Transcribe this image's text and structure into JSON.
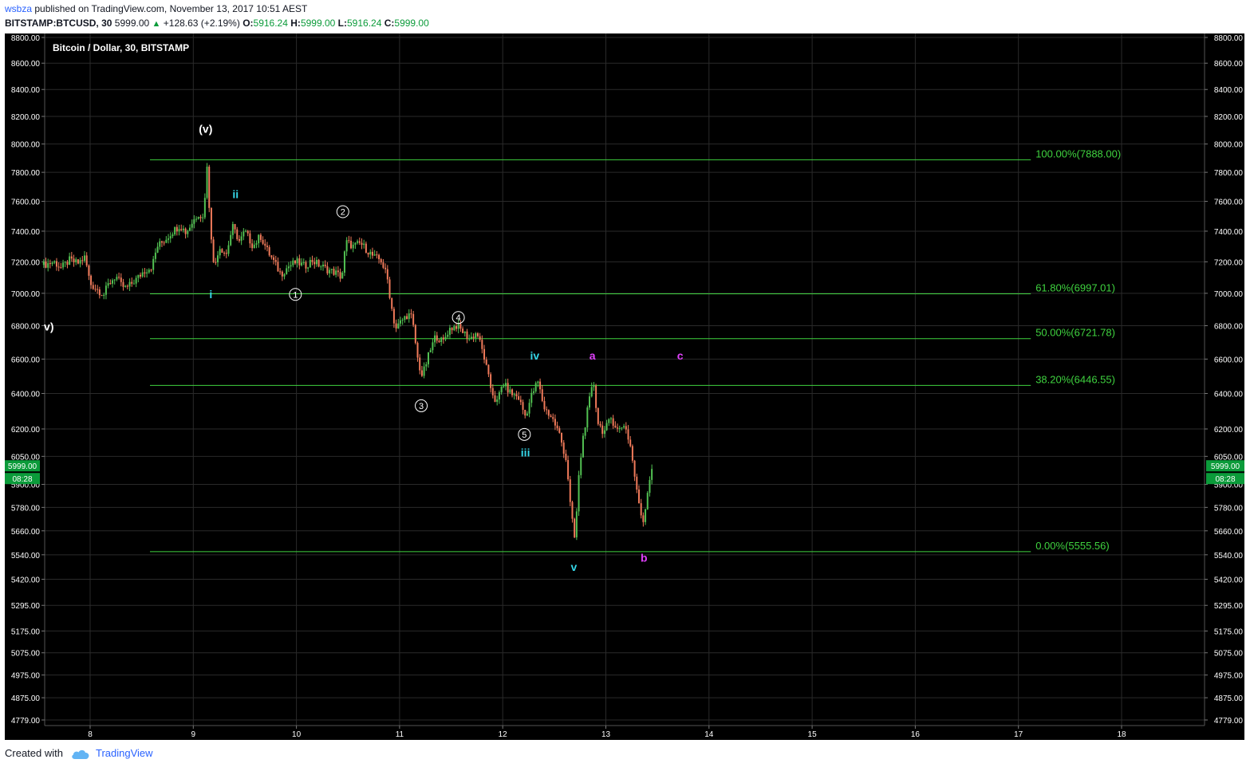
{
  "header": {
    "author": "wsbza",
    "published_text": "published on TradingView.com, November 13, 2017 10:51 AEST",
    "symbol": "BITSTAMP:BTCUSD, 30",
    "last": "5999.00",
    "change": "+128.63 (+2.19%)",
    "o_label": "O:",
    "o_value": "5916.24",
    "h_label": "H:",
    "h_value": "5999.00",
    "l_label": "L:",
    "l_value": "5916.24",
    "c_label": "C:",
    "c_value": "5999.00"
  },
  "footer": {
    "created_with": "Created with",
    "brand": "TradingView"
  },
  "colors": {
    "background": "#000000",
    "grid": "#2a2a2a",
    "up_candle": "#52c152",
    "down_candle": "#f07a5a",
    "fib_line": "#3fd23f",
    "wave_cyan": "#35d7e8",
    "wave_magenta": "#e040fb",
    "white": "#ffffff",
    "price_badge": "#0b9b3a"
  },
  "chart_data": {
    "type": "candlestick",
    "title": "Bitcoin / Dollar, 30, BITSTAMP",
    "x_axis_ticks": [
      "8",
      "9",
      "10",
      "11",
      "12",
      "13",
      "14",
      "15",
      "16",
      "17",
      "18"
    ],
    "y_axis_ticks": [
      "8800.00",
      "8600.00",
      "8400.00",
      "8200.00",
      "8000.00",
      "7800.00",
      "7600.00",
      "7400.00",
      "7200.00",
      "7000.00",
      "6800.00",
      "6600.00",
      "6400.00",
      "6200.00",
      "6050.00",
      "5900.00",
      "5780.00",
      "5660.00",
      "5540.00",
      "5420.00",
      "5295.00",
      "5175.00",
      "5075.00",
      "4975.00",
      "4875.00",
      "4779.00"
    ],
    "y_scale": "log",
    "ylim": [
      4779,
      8800
    ],
    "last_price": "5999.00",
    "countdown": "08:28",
    "price_path": [
      [
        7.55,
        7180
      ],
      [
        7.65,
        7200
      ],
      [
        7.72,
        7160
      ],
      [
        7.8,
        7210
      ],
      [
        7.88,
        7190
      ],
      [
        7.95,
        7230
      ],
      [
        8.0,
        7060
      ],
      [
        8.08,
        7020
      ],
      [
        8.13,
        6990
      ],
      [
        8.18,
        7060
      ],
      [
        8.25,
        7110
      ],
      [
        8.3,
        7050
      ],
      [
        8.35,
        7030
      ],
      [
        8.45,
        7090
      ],
      [
        8.52,
        7140
      ],
      [
        8.6,
        7170
      ],
      [
        8.65,
        7300
      ],
      [
        8.72,
        7340
      ],
      [
        8.8,
        7400
      ],
      [
        8.87,
        7440
      ],
      [
        8.93,
        7390
      ],
      [
        9.0,
        7470
      ],
      [
        9.05,
        7520
      ],
      [
        9.1,
        7480
      ],
      [
        9.13,
        7870
      ],
      [
        9.16,
        7500
      ],
      [
        9.2,
        7150
      ],
      [
        9.25,
        7300
      ],
      [
        9.32,
        7250
      ],
      [
        9.38,
        7430
      ],
      [
        9.45,
        7330
      ],
      [
        9.5,
        7400
      ],
      [
        9.58,
        7300
      ],
      [
        9.65,
        7370
      ],
      [
        9.72,
        7270
      ],
      [
        9.78,
        7200
      ],
      [
        9.85,
        7120
      ],
      [
        9.92,
        7170
      ],
      [
        10.0,
        7200
      ],
      [
        10.08,
        7170
      ],
      [
        10.15,
        7210
      ],
      [
        10.22,
        7180
      ],
      [
        10.3,
        7150
      ],
      [
        10.38,
        7130
      ],
      [
        10.44,
        7100
      ],
      [
        10.48,
        7330
      ],
      [
        10.55,
        7300
      ],
      [
        10.62,
        7320
      ],
      [
        10.68,
        7280
      ],
      [
        10.75,
        7230
      ],
      [
        10.82,
        7210
      ],
      [
        10.88,
        7100
      ],
      [
        10.92,
        6920
      ],
      [
        10.96,
        6780
      ],
      [
        11.02,
        6830
      ],
      [
        11.08,
        6870
      ],
      [
        11.12,
        6850
      ],
      [
        11.18,
        6580
      ],
      [
        11.22,
        6500
      ],
      [
        11.28,
        6620
      ],
      [
        11.35,
        6740
      ],
      [
        11.42,
        6700
      ],
      [
        11.48,
        6780
      ],
      [
        11.55,
        6800
      ],
      [
        11.62,
        6760
      ],
      [
        11.68,
        6720
      ],
      [
        11.75,
        6760
      ],
      [
        11.82,
        6610
      ],
      [
        11.88,
        6440
      ],
      [
        11.94,
        6340
      ],
      [
        12.0,
        6460
      ],
      [
        12.08,
        6400
      ],
      [
        12.15,
        6380
      ],
      [
        12.22,
        6270
      ],
      [
        12.28,
        6390
      ],
      [
        12.34,
        6470
      ],
      [
        12.4,
        6320
      ],
      [
        12.48,
        6260
      ],
      [
        12.55,
        6170
      ],
      [
        12.62,
        6020
      ],
      [
        12.66,
        5760
      ],
      [
        12.7,
        5610
      ],
      [
        12.74,
        5960
      ],
      [
        12.78,
        6160
      ],
      [
        12.83,
        6330
      ],
      [
        12.88,
        6470
      ],
      [
        12.92,
        6240
      ],
      [
        12.98,
        6180
      ],
      [
        13.05,
        6260
      ],
      [
        13.12,
        6190
      ],
      [
        13.18,
        6230
      ],
      [
        13.24,
        6100
      ],
      [
        13.3,
        5860
      ],
      [
        13.36,
        5700
      ],
      [
        13.42,
        5920
      ],
      [
        13.45,
        5999
      ]
    ],
    "fib_levels": [
      {
        "label": "100.00%(7888.00)",
        "price": 7888.0
      },
      {
        "label": "61.80%(6997.01)",
        "price": 6997.01
      },
      {
        "label": "50.00%(6721.78)",
        "price": 6721.78
      },
      {
        "label": "38.20%(6446.55)",
        "price": 6446.55
      },
      {
        "label": "0.00%(5555.56)",
        "price": 5555.56
      }
    ],
    "wave_labels": [
      {
        "text": "(v)",
        "x": 9.12,
        "price": 8110,
        "color": "white",
        "circled": false
      },
      {
        "text": "v)",
        "x": 7.6,
        "price": 6795,
        "color": "white",
        "circled": false
      },
      {
        "text": "i",
        "x": 9.17,
        "price": 6995,
        "color": "cyan",
        "circled": false
      },
      {
        "text": "ii",
        "x": 9.41,
        "price": 7650,
        "color": "cyan",
        "circled": false
      },
      {
        "text": "iii",
        "x": 12.22,
        "price": 6070,
        "color": "cyan",
        "circled": false
      },
      {
        "text": "iv",
        "x": 12.31,
        "price": 6620,
        "color": "cyan",
        "circled": false
      },
      {
        "text": "v",
        "x": 12.69,
        "price": 5480,
        "color": "cyan",
        "circled": false
      },
      {
        "text": "1",
        "x": 9.99,
        "price": 6993,
        "color": "white",
        "circled": true
      },
      {
        "text": "2",
        "x": 10.45,
        "price": 7530,
        "color": "white",
        "circled": true
      },
      {
        "text": "3",
        "x": 11.21,
        "price": 6330,
        "color": "white",
        "circled": true
      },
      {
        "text": "4",
        "x": 11.57,
        "price": 6850,
        "color": "white",
        "circled": true
      },
      {
        "text": "5",
        "x": 12.21,
        "price": 6170,
        "color": "white",
        "circled": true
      },
      {
        "text": "a",
        "x": 12.87,
        "price": 6620,
        "color": "magenta",
        "circled": false
      },
      {
        "text": "b",
        "x": 13.37,
        "price": 5525,
        "color": "magenta",
        "circled": false
      },
      {
        "text": "c",
        "x": 13.72,
        "price": 6620,
        "color": "magenta",
        "circled": false
      }
    ]
  }
}
